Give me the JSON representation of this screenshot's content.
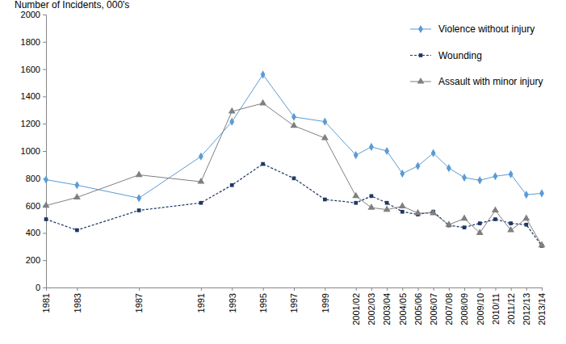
{
  "chart_data": {
    "type": "line",
    "y_label": "Number of Incidents, 000's",
    "x": [
      1981,
      1983,
      1987,
      1991,
      1993,
      1995,
      1997,
      1999,
      2001,
      2002,
      2003,
      2004,
      2005,
      2006,
      2007,
      2008,
      2009,
      2010,
      2011,
      2012,
      2013
    ],
    "xlim": [
      1981,
      2013
    ],
    "xticks": [
      1981,
      1983,
      1987,
      1991,
      1993,
      1995,
      1997,
      1999,
      {
        "value": 2001,
        "label": "2001/02"
      },
      {
        "value": 2002,
        "label": "2002/03"
      },
      {
        "value": 2003,
        "label": "2003/04"
      },
      {
        "value": 2004,
        "label": "2004/05"
      },
      {
        "value": 2005,
        "label": "2005/06"
      },
      {
        "value": 2006,
        "label": "2006/07"
      },
      {
        "value": 2007,
        "label": "2007/08"
      },
      {
        "value": 2008,
        "label": "2008/09"
      },
      {
        "value": 2009,
        "label": "2009/10"
      },
      {
        "value": 2010,
        "label": "2010/11"
      },
      {
        "value": 2011,
        "label": "2011/12"
      },
      {
        "value": 2012,
        "label": "2012/13"
      },
      {
        "value": 2013,
        "label": "2013/14"
      }
    ],
    "ylim": [
      0,
      2000
    ],
    "yticks": [
      0,
      200,
      400,
      600,
      800,
      1000,
      1200,
      1400,
      1600,
      1800,
      2000
    ],
    "grid": false,
    "legend": "top-right",
    "series": [
      {
        "name": "Violence without injury",
        "color": "#5b9bd5",
        "marker": "diamond",
        "line_style": "solid",
        "values": [
          790,
          750,
          655,
          960,
          1215,
          1560,
          1250,
          1215,
          970,
          1030,
          1000,
          835,
          890,
          985,
          875,
          805,
          785,
          815,
          830,
          680,
          690
        ]
      },
      {
        "name": "Wounding",
        "color": "#1f3864",
        "marker": "square",
        "line_style": "dashed",
        "values": [
          500,
          420,
          565,
          620,
          750,
          905,
          800,
          645,
          620,
          670,
          620,
          555,
          535,
          555,
          455,
          440,
          470,
          500,
          470,
          460,
          305
        ]
      },
      {
        "name": "Assault with minor injury",
        "color": "#7f7f7f",
        "marker": "triangle",
        "line_style": "solid",
        "values": [
          600,
          660,
          825,
          775,
          1290,
          1350,
          1185,
          1095,
          670,
          585,
          570,
          595,
          545,
          545,
          460,
          505,
          400,
          565,
          420,
          505,
          310
        ]
      }
    ]
  }
}
